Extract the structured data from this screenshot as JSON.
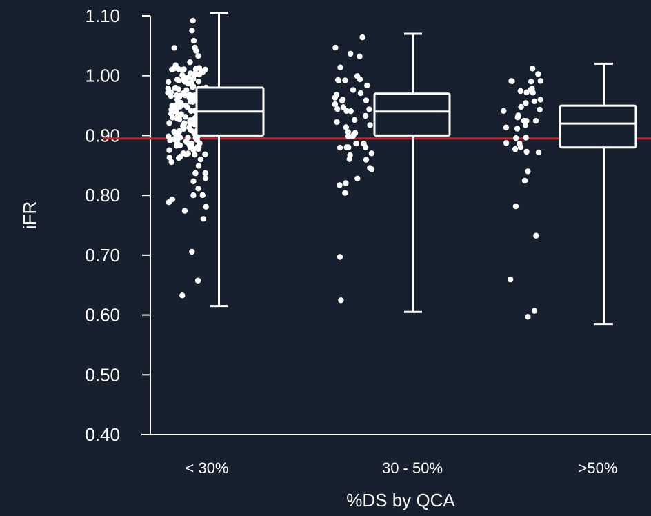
{
  "chart_data": {
    "type": "box",
    "title": "",
    "xlabel": "%DS by QCA",
    "ylabel": "iFR",
    "ylim": [
      0.4,
      1.1
    ],
    "yticks": [
      "1.10",
      "1.00",
      "0.90",
      "0.80",
      "0.70",
      "0.60",
      "0.50",
      "0.40"
    ],
    "reference_line": {
      "y": 0.895,
      "color": "#e8141c"
    },
    "colors": {
      "background": "#17202e",
      "foreground": "#ffffff",
      "reference": "#e8141c"
    },
    "groups": [
      {
        "category": "< 30%",
        "box": {
          "whisker_low": 0.615,
          "q1": 0.9,
          "median": 0.94,
          "q3": 0.98,
          "whisker_high": 1.105
        },
        "points": [
          1.09,
          1.08,
          1.06,
          1.05,
          1.05,
          1.04,
          1.03,
          1.02,
          1.02,
          1.01,
          1.01,
          1.0,
          1.0,
          0.99,
          0.99,
          0.98,
          0.98,
          0.97,
          0.97,
          0.96,
          0.96,
          0.95,
          0.95,
          0.94,
          0.94,
          0.93,
          0.93,
          0.92,
          0.92,
          0.91,
          0.91,
          0.9,
          0.9,
          0.89,
          0.89,
          0.88,
          0.88,
          0.87,
          0.86,
          0.85,
          0.84,
          0.84,
          0.83,
          0.82,
          0.81,
          0.8,
          0.8,
          0.79,
          0.79,
          0.78,
          0.77,
          0.76,
          0.71,
          0.66,
          0.63
        ]
      },
      {
        "category": "30 - 50%",
        "box": {
          "whisker_low": 0.605,
          "q1": 0.9,
          "median": 0.94,
          "q3": 0.97,
          "whisker_high": 1.07
        },
        "points": [
          1.06,
          1.05,
          1.04,
          1.03,
          1.01,
          1.0,
          0.99,
          0.99,
          0.98,
          0.97,
          0.96,
          0.96,
          0.95,
          0.94,
          0.94,
          0.93,
          0.92,
          0.91,
          0.9,
          0.9,
          0.89,
          0.88,
          0.88,
          0.87,
          0.86,
          0.86,
          0.85,
          0.84,
          0.83,
          0.82,
          0.82,
          0.8,
          0.7,
          0.62
        ]
      },
      {
        "category": ">50%",
        "box": {
          "whisker_low": 0.585,
          "q1": 0.88,
          "median": 0.92,
          "q3": 0.95,
          "whisker_high": 1.02
        },
        "points": [
          1.01,
          1.0,
          0.99,
          0.99,
          0.98,
          0.97,
          0.97,
          0.96,
          0.95,
          0.94,
          0.93,
          0.92,
          0.92,
          0.91,
          0.9,
          0.89,
          0.88,
          0.87,
          0.84,
          0.82,
          0.78,
          0.73,
          0.66,
          0.61,
          0.6
        ]
      }
    ]
  }
}
